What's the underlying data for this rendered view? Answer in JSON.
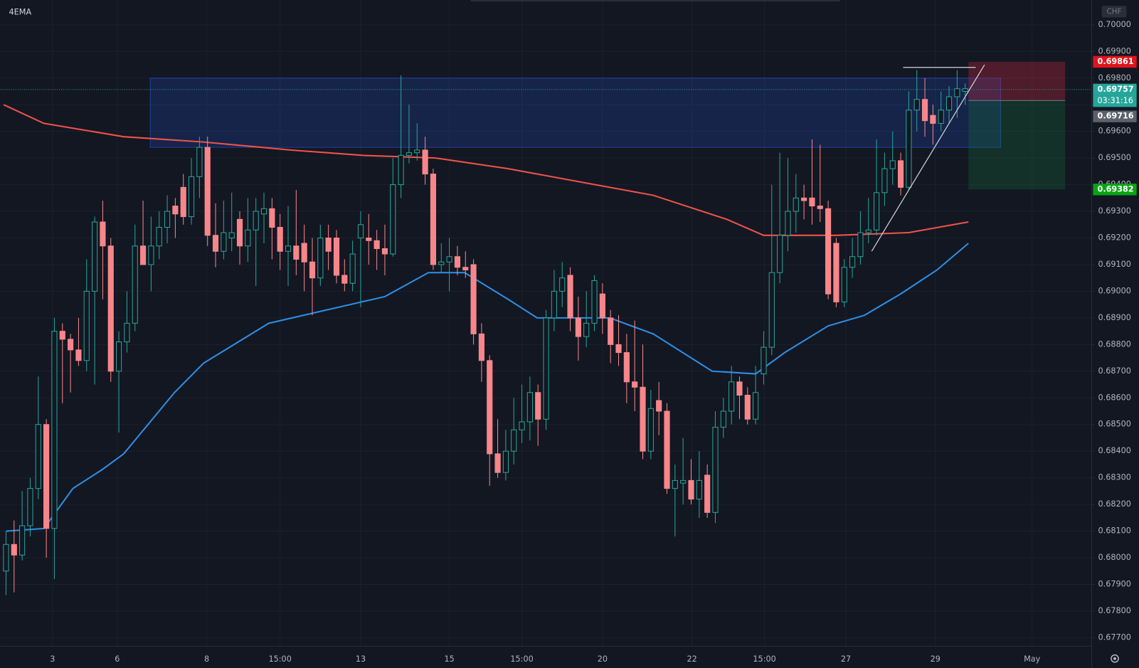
{
  "chart_data": {
    "type": "candlestick",
    "title": "4EMA",
    "currency": "CHF",
    "up_color": "#26a69a",
    "down_color": "#f7868a",
    "xlim": [
      -0.72,
      134.68
    ],
    "ylim": [
      0.67668,
      0.70093
    ],
    "xticks": [
      {
        "value": 5.77,
        "label": "3"
      },
      {
        "value": 13.8,
        "label": "6"
      },
      {
        "value": 24.9,
        "label": "8"
      },
      {
        "value": 34,
        "label": "15:00"
      },
      {
        "value": 44,
        "label": "13"
      },
      {
        "value": 55,
        "label": "15"
      },
      {
        "value": 64,
        "label": "15:00"
      },
      {
        "value": 74,
        "label": "20"
      },
      {
        "value": 85.1,
        "label": "22"
      },
      {
        "value": 94.1,
        "label": "15:00"
      },
      {
        "value": 104.2,
        "label": "27"
      },
      {
        "value": 115.3,
        "label": "29"
      },
      {
        "value": 127.3,
        "label": "May"
      }
    ],
    "yticks": [
      {
        "value": 0.7,
        "label": "0.70000"
      },
      {
        "value": 0.699,
        "label": "0.69900"
      },
      {
        "value": 0.698,
        "label": "0.69800"
      },
      {
        "value": 0.697,
        "label": "0.69700"
      },
      {
        "value": 0.696,
        "label": "0.69600"
      },
      {
        "value": 0.695,
        "label": "0.69500"
      },
      {
        "value": 0.694,
        "label": "0.69400"
      },
      {
        "value": 0.693,
        "label": "0.69300"
      },
      {
        "value": 0.692,
        "label": "0.69200"
      },
      {
        "value": 0.691,
        "label": "0.69100"
      },
      {
        "value": 0.69,
        "label": "0.69000"
      },
      {
        "value": 0.689,
        "label": "0.68900"
      },
      {
        "value": 0.688,
        "label": "0.68800"
      },
      {
        "value": 0.687,
        "label": "0.68700"
      },
      {
        "value": 0.686,
        "label": "0.68600"
      },
      {
        "value": 0.685,
        "label": "0.68500"
      },
      {
        "value": 0.684,
        "label": "0.68400"
      },
      {
        "value": 0.683,
        "label": "0.68300"
      },
      {
        "value": 0.682,
        "label": "0.68200"
      },
      {
        "value": 0.681,
        "label": "0.68100"
      },
      {
        "value": 0.68,
        "label": "0.68000"
      },
      {
        "value": 0.679,
        "label": "0.67900"
      },
      {
        "value": 0.678,
        "label": "0.67800"
      },
      {
        "value": 0.677,
        "label": "0.67700"
      }
    ],
    "ohlc": [
      [
        0.6795,
        0.681,
        0.6786,
        0.6805
      ],
      [
        0.6805,
        0.6814,
        0.6787,
        0.6801
      ],
      [
        0.6801,
        0.6825,
        0.6799,
        0.6812
      ],
      [
        0.6812,
        0.683,
        0.6808,
        0.6826
      ],
      [
        0.6826,
        0.6868,
        0.6822,
        0.685
      ],
      [
        0.685,
        0.6852,
        0.68,
        0.6811
      ],
      [
        0.6811,
        0.689,
        0.6792,
        0.6885
      ],
      [
        0.6885,
        0.6888,
        0.6858,
        0.6882
      ],
      [
        0.6882,
        0.6884,
        0.6862,
        0.6878
      ],
      [
        0.6878,
        0.689,
        0.6872,
        0.6874
      ],
      [
        0.6874,
        0.6912,
        0.687,
        0.69
      ],
      [
        0.69,
        0.6928,
        0.6865,
        0.6926
      ],
      [
        0.6926,
        0.6934,
        0.6897,
        0.6917
      ],
      [
        0.6917,
        0.692,
        0.6866,
        0.687
      ],
      [
        0.687,
        0.6885,
        0.6847,
        0.6881
      ],
      [
        0.6881,
        0.69,
        0.6877,
        0.6888
      ],
      [
        0.6888,
        0.6925,
        0.6885,
        0.6917
      ],
      [
        0.6917,
        0.6934,
        0.691,
        0.691
      ],
      [
        0.691,
        0.6928,
        0.69,
        0.6917
      ],
      [
        0.6917,
        0.693,
        0.6912,
        0.6924
      ],
      [
        0.6924,
        0.6936,
        0.6918,
        0.693
      ],
      [
        0.6932,
        0.6935,
        0.692,
        0.6929
      ],
      [
        0.6939,
        0.6944,
        0.6925,
        0.6928
      ],
      [
        0.6928,
        0.695,
        0.6925,
        0.6943
      ],
      [
        0.6943,
        0.6958,
        0.6935,
        0.6954
      ],
      [
        0.6954,
        0.6958,
        0.6917,
        0.6921
      ],
      [
        0.6921,
        0.6933,
        0.6909,
        0.6915
      ],
      [
        0.6915,
        0.6934,
        0.6912,
        0.6922
      ],
      [
        0.692,
        0.6937,
        0.6915,
        0.6922
      ],
      [
        0.6927,
        0.693,
        0.691,
        0.6917
      ],
      [
        0.6917,
        0.6935,
        0.6911,
        0.6923
      ],
      [
        0.6923,
        0.6935,
        0.6902,
        0.693
      ],
      [
        0.6929,
        0.6937,
        0.6918,
        0.6931
      ],
      [
        0.6931,
        0.6935,
        0.6912,
        0.6924
      ],
      [
        0.6924,
        0.6929,
        0.6908,
        0.6915
      ],
      [
        0.6915,
        0.6932,
        0.6902,
        0.6917
      ],
      [
        0.6917,
        0.6938,
        0.6906,
        0.6912
      ],
      [
        0.6918,
        0.6925,
        0.69,
        0.6911
      ],
      [
        0.6911,
        0.692,
        0.6891,
        0.6905
      ],
      [
        0.6905,
        0.6925,
        0.6902,
        0.692
      ],
      [
        0.692,
        0.6925,
        0.6908,
        0.6915
      ],
      [
        0.692,
        0.6923,
        0.6903,
        0.6906
      ],
      [
        0.6906,
        0.6912,
        0.69,
        0.6903
      ],
      [
        0.6903,
        0.6919,
        0.69,
        0.6914
      ],
      [
        0.692,
        0.693,
        0.6894,
        0.6925
      ],
      [
        0.692,
        0.6929,
        0.691,
        0.6919
      ],
      [
        0.6919,
        0.6923,
        0.6908,
        0.6916
      ],
      [
        0.6916,
        0.6925,
        0.6906,
        0.6914
      ],
      [
        0.6914,
        0.695,
        0.6913,
        0.694
      ],
      [
        0.694,
        0.6981,
        0.6935,
        0.6951
      ],
      [
        0.6951,
        0.697,
        0.6948,
        0.6952
      ],
      [
        0.6952,
        0.6963,
        0.6949,
        0.6953
      ],
      [
        0.6953,
        0.6958,
        0.694,
        0.6944
      ],
      [
        0.6944,
        0.6946,
        0.6908,
        0.691
      ],
      [
        0.691,
        0.6918,
        0.6907,
        0.6911
      ],
      [
        0.6911,
        0.692,
        0.69,
        0.6913
      ],
      [
        0.6913,
        0.6917,
        0.6906,
        0.6909
      ],
      [
        0.6909,
        0.6915,
        0.6905,
        0.6908
      ],
      [
        0.691,
        0.6912,
        0.688,
        0.6884
      ],
      [
        0.6884,
        0.6888,
        0.6866,
        0.6874
      ],
      [
        0.6874,
        0.6876,
        0.6827,
        0.6839
      ],
      [
        0.6839,
        0.6852,
        0.683,
        0.6832
      ],
      [
        0.6832,
        0.6848,
        0.6829,
        0.684
      ],
      [
        0.684,
        0.686,
        0.6835,
        0.6848
      ],
      [
        0.6848,
        0.6865,
        0.6843,
        0.6851
      ],
      [
        0.6851,
        0.6868,
        0.6844,
        0.6862
      ],
      [
        0.6862,
        0.6865,
        0.6842,
        0.6852
      ],
      [
        0.6852,
        0.6893,
        0.6848,
        0.689
      ],
      [
        0.689,
        0.6908,
        0.6885,
        0.69
      ],
      [
        0.69,
        0.6911,
        0.6894,
        0.6905
      ],
      [
        0.6906,
        0.6909,
        0.6885,
        0.689
      ],
      [
        0.689,
        0.6898,
        0.6874,
        0.6883
      ],
      [
        0.6883,
        0.69,
        0.6879,
        0.6888
      ],
      [
        0.6888,
        0.6906,
        0.6885,
        0.6904
      ],
      [
        0.6899,
        0.6903,
        0.6884,
        0.689
      ],
      [
        0.689,
        0.6893,
        0.6873,
        0.688
      ],
      [
        0.688,
        0.6891,
        0.6872,
        0.6877
      ],
      [
        0.6877,
        0.6884,
        0.6858,
        0.6866
      ],
      [
        0.6866,
        0.6889,
        0.6855,
        0.6864
      ],
      [
        0.6864,
        0.688,
        0.6837,
        0.684
      ],
      [
        0.684,
        0.6863,
        0.6837,
        0.6856
      ],
      [
        0.6859,
        0.6866,
        0.6846,
        0.6855
      ],
      [
        0.6855,
        0.6858,
        0.6824,
        0.6826
      ],
      [
        0.6826,
        0.6835,
        0.6808,
        0.6829
      ],
      [
        0.6828,
        0.6845,
        0.682,
        0.6829
      ],
      [
        0.6829,
        0.6837,
        0.682,
        0.6822
      ],
      [
        0.6822,
        0.684,
        0.6815,
        0.6829
      ],
      [
        0.6831,
        0.6835,
        0.6815,
        0.6817
      ],
      [
        0.6817,
        0.6855,
        0.6813,
        0.6849
      ],
      [
        0.6849,
        0.686,
        0.6845,
        0.6855
      ],
      [
        0.6855,
        0.6872,
        0.685,
        0.6866
      ],
      [
        0.6866,
        0.6868,
        0.6852,
        0.6861
      ],
      [
        0.6861,
        0.6864,
        0.685,
        0.6852
      ],
      [
        0.6852,
        0.6872,
        0.685,
        0.6862
      ],
      [
        0.6869,
        0.6885,
        0.6865,
        0.6879
      ],
      [
        0.6879,
        0.694,
        0.6876,
        0.6907
      ],
      [
        0.6907,
        0.6952,
        0.6903,
        0.6921
      ],
      [
        0.6921,
        0.695,
        0.6915,
        0.693
      ],
      [
        0.693,
        0.6944,
        0.6922,
        0.6935
      ],
      [
        0.6935,
        0.694,
        0.6927,
        0.6934
      ],
      [
        0.6935,
        0.6957,
        0.6925,
        0.6932
      ],
      [
        0.6932,
        0.6955,
        0.6926,
        0.6931
      ],
      [
        0.6931,
        0.6934,
        0.6897,
        0.6899
      ],
      [
        0.6918,
        0.692,
        0.6894,
        0.6896
      ],
      [
        0.6896,
        0.6912,
        0.6894,
        0.6909
      ],
      [
        0.6909,
        0.692,
        0.6905,
        0.6913
      ],
      [
        0.6913,
        0.693,
        0.691,
        0.6922
      ],
      [
        0.6922,
        0.6935,
        0.6918,
        0.6923
      ],
      [
        0.6923,
        0.6957,
        0.6921,
        0.6937
      ],
      [
        0.6937,
        0.6952,
        0.6932,
        0.6946
      ],
      [
        0.6946,
        0.696,
        0.694,
        0.6949
      ],
      [
        0.6949,
        0.6952,
        0.6936,
        0.6939
      ],
      [
        0.6939,
        0.6975,
        0.6938,
        0.6968
      ],
      [
        0.6968,
        0.6983,
        0.696,
        0.6972
      ],
      [
        0.6972,
        0.698,
        0.6958,
        0.6964
      ],
      [
        0.6966,
        0.697,
        0.6955,
        0.6963
      ],
      [
        0.6963,
        0.6975,
        0.696,
        0.6968
      ],
      [
        0.6968,
        0.6977,
        0.6963,
        0.6973
      ],
      [
        0.6973,
        0.6983,
        0.6965,
        0.6976
      ],
      [
        0.6975,
        0.6978,
        0.697,
        0.6976
      ]
    ],
    "lines": [
      {
        "color": "#f0534a",
        "x": [
          -0.3,
          4.7,
          14.6,
          24.5,
          35.3,
          44.3,
          53.3,
          62.3,
          71.3,
          80.3,
          89.4,
          94,
          103,
          112,
          119.4
        ],
        "values": [
          0.697,
          0.6963,
          0.6958,
          0.6956,
          0.6953,
          0.6951,
          0.695,
          0.6946,
          0.6941,
          0.6936,
          0.6927,
          0.6921,
          0.6921,
          0.6922,
          0.6926
        ]
      },
      {
        "color": "#2d8fe6",
        "x": [
          0,
          4.7,
          8.3,
          11.9,
          14.6,
          20.9,
          24.5,
          32.6,
          39.8,
          47,
          52.4,
          56.9,
          62.3,
          65.9,
          74.9,
          80.3,
          87.6,
          93,
          96.6,
          102,
          106.5,
          111,
          115.5,
          119.4
        ],
        "values": [
          0.681,
          0.6811,
          0.6826,
          0.6833,
          0.6839,
          0.6862,
          0.6873,
          0.6888,
          0.6893,
          0.6898,
          0.6907,
          0.6907,
          0.6897,
          0.689,
          0.689,
          0.6884,
          0.687,
          0.6869,
          0.6877,
          0.6887,
          0.6891,
          0.6899,
          0.6908,
          0.6918
        ]
      }
    ],
    "zone": {
      "x": [
        17.9,
        123.4
      ],
      "y": [
        0.6954,
        0.698
      ]
    },
    "trendlines": [
      {
        "x": [
          107.4,
          121.4
        ],
        "y": [
          0.6915,
          0.6985
        ]
      },
      {
        "x": [
          111.3,
          120.3
        ],
        "y": [
          0.6984,
          0.6984
        ]
      }
    ],
    "position": {
      "x": [
        119.4,
        131.4
      ],
      "entry": 0.69716,
      "stop": 0.69861,
      "target": 0.69382
    },
    "last_price": 0.69757,
    "countdown": "03:31:16"
  }
}
